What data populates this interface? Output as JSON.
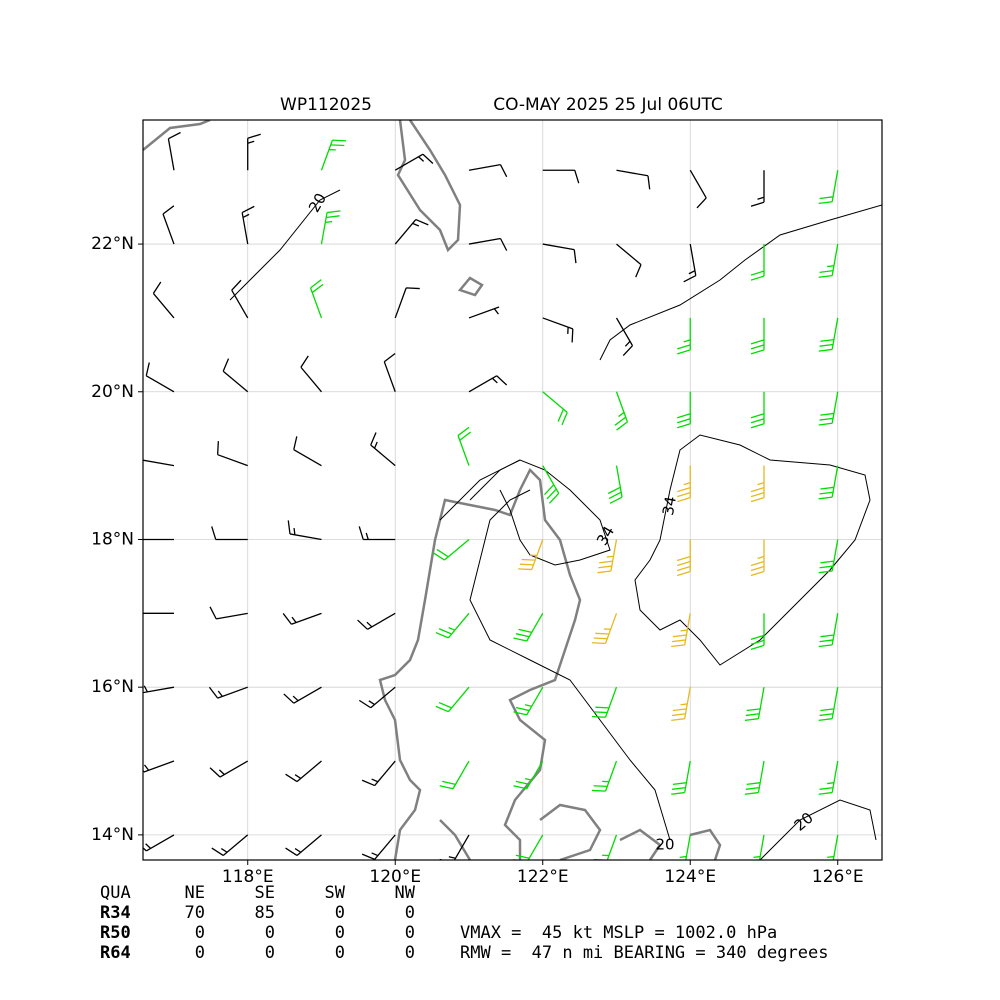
{
  "chart_data": {
    "type": "wind-barb-map",
    "title_left": "WP112025",
    "title_right": "CO-MAY 2025 25 Jul 06UTC",
    "xlim": [
      116.58,
      126.6
    ],
    "ylim": [
      13.66,
      23.68
    ],
    "xticks": [
      {
        "value": 118,
        "label": "118°E"
      },
      {
        "value": 120,
        "label": "120°E"
      },
      {
        "value": 122,
        "label": "122°E"
      },
      {
        "value": 124,
        "label": "124°E"
      },
      {
        "value": 126,
        "label": "126°E"
      }
    ],
    "yticks": [
      {
        "value": 14,
        "label": "14°N"
      },
      {
        "value": 16,
        "label": "16°N"
      },
      {
        "value": 18,
        "label": "18°N"
      },
      {
        "value": 20,
        "label": "20°N"
      },
      {
        "value": 22,
        "label": "22°N"
      }
    ],
    "grid": true,
    "contour_labels": [
      20,
      34,
      34,
      20,
      20
    ],
    "barb_levels": [
      20,
      34
    ],
    "barb_colors": [
      "#000000",
      "#00dd00",
      "#e8b820"
    ],
    "barbs": {
      "lats": [
        23,
        22,
        21,
        20,
        19,
        18,
        17,
        16,
        15,
        14
      ],
      "lons": [
        117,
        118,
        119,
        120,
        121,
        122,
        123,
        124,
        125,
        126
      ],
      "direction": [
        [
          350,
          0,
          20,
          60,
          80,
          90,
          100,
          150,
          180,
          190
        ],
        [
          340,
          350,
          10,
          40,
          80,
          100,
          130,
          170,
          180,
          190
        ],
        [
          320,
          330,
          340,
          20,
          70,
          110,
          150,
          180,
          180,
          190
        ],
        [
          300,
          310,
          320,
          340,
          60,
          130,
          160,
          180,
          180,
          190
        ],
        [
          280,
          290,
          300,
          310,
          340,
          150,
          170,
          180,
          180,
          190
        ],
        [
          270,
          270,
          280,
          270,
          230,
          200,
          190,
          180,
          180,
          190
        ],
        [
          270,
          260,
          250,
          240,
          220,
          210,
          200,
          190,
          180,
          190
        ],
        [
          260,
          250,
          240,
          230,
          220,
          210,
          200,
          190,
          190,
          190
        ],
        [
          250,
          240,
          230,
          220,
          210,
          210,
          200,
          190,
          190,
          190
        ],
        [
          240,
          230,
          230,
          220,
          210,
          210,
          200,
          190,
          190,
          190
        ]
      ],
      "speed": [
        [
          10,
          15,
          25,
          15,
          10,
          10,
          10,
          10,
          15,
          20
        ],
        [
          10,
          15,
          25,
          15,
          10,
          10,
          10,
          15,
          20,
          25
        ],
        [
          10,
          10,
          20,
          10,
          5,
          15,
          15,
          25,
          30,
          30
        ],
        [
          10,
          10,
          10,
          10,
          15,
          20,
          25,
          30,
          30,
          30
        ],
        [
          10,
          10,
          10,
          15,
          20,
          30,
          30,
          35,
          35,
          30
        ],
        [
          10,
          10,
          15,
          15,
          20,
          35,
          35,
          40,
          35,
          30
        ],
        [
          10,
          10,
          15,
          15,
          25,
          30,
          35,
          35,
          30,
          30
        ],
        [
          15,
          15,
          15,
          15,
          20,
          25,
          30,
          35,
          30,
          30
        ],
        [
          15,
          15,
          15,
          15,
          20,
          25,
          25,
          30,
          30,
          25
        ],
        [
          15,
          15,
          15,
          15,
          15,
          20,
          25,
          25,
          25,
          25
        ]
      ]
    },
    "radii_table": {
      "header": [
        "QUA",
        "NE",
        "SE",
        "SW",
        "NW"
      ],
      "rows": [
        [
          "R34",
          70,
          85,
          0,
          0
        ],
        [
          "R50",
          0,
          0,
          0,
          0
        ],
        [
          "R64",
          0,
          0,
          0,
          0
        ]
      ]
    },
    "info_lines": [
      "VMAX =  45 kt MSLP = 1002.0 hPa",
      "RMW =  47 n mi BEARING = 340 degrees"
    ]
  }
}
